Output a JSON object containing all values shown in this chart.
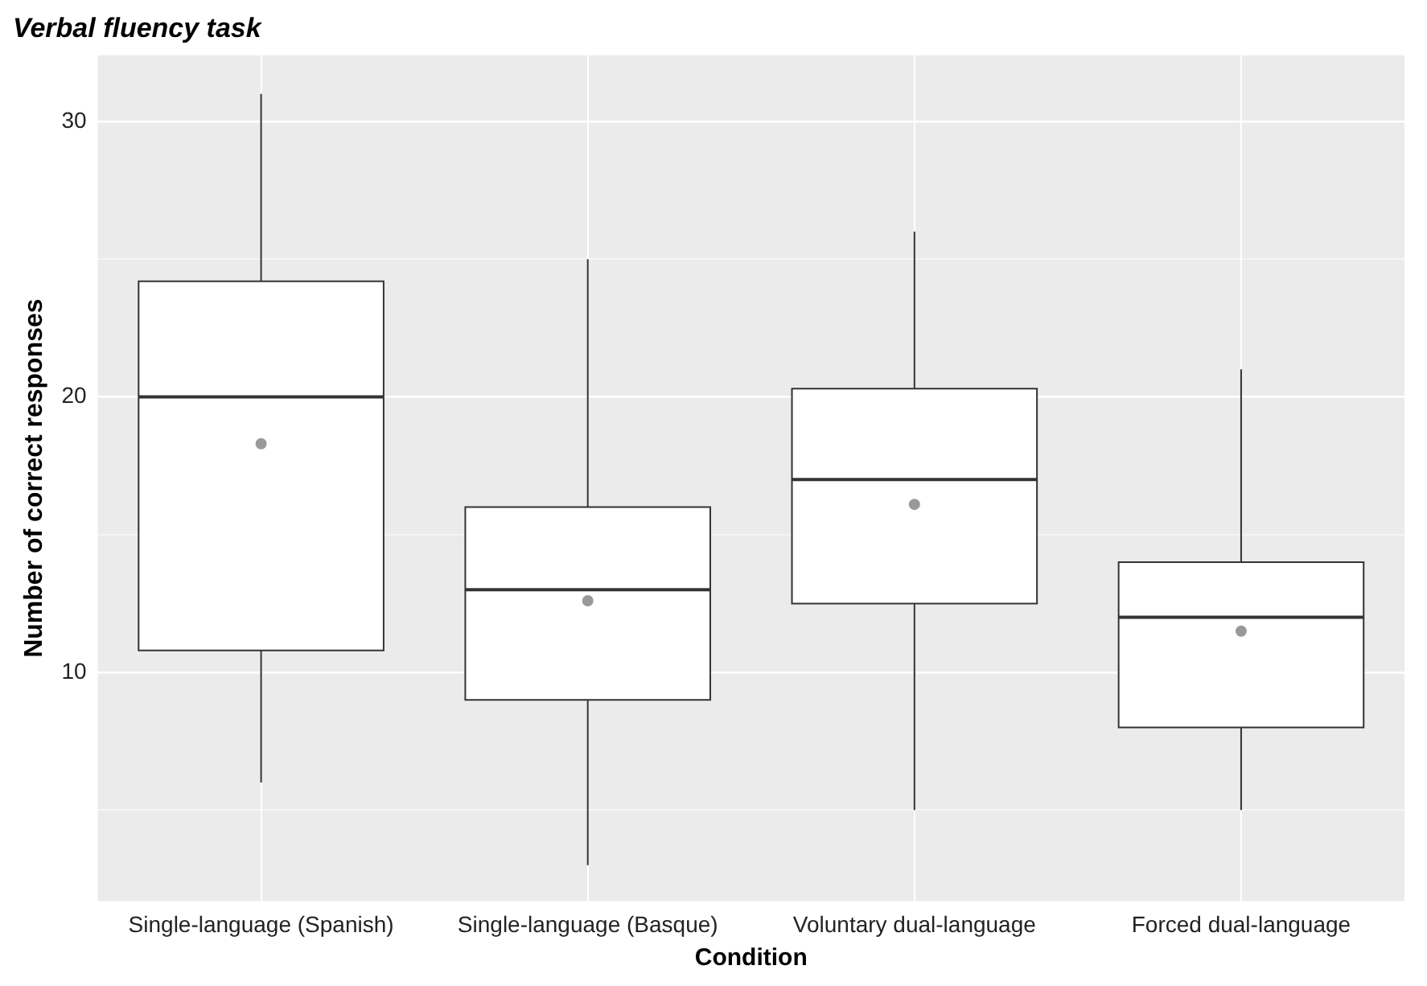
{
  "chart_data": {
    "type": "box",
    "title": "Verbal fluency task",
    "xlabel": "Condition",
    "ylabel": "Number of correct responses",
    "categories": [
      "Single-language (Spanish)",
      "Single-language (Basque)",
      "Voluntary dual-language",
      "Forced dual-language"
    ],
    "boxes": [
      {
        "low": 6,
        "q1": 10.8,
        "median": 20,
        "q3": 24.2,
        "high": 31,
        "mean": 18.3
      },
      {
        "low": 3,
        "q1": 9,
        "median": 13,
        "q3": 16,
        "high": 25,
        "mean": 12.6
      },
      {
        "low": 5,
        "q1": 12.5,
        "median": 17,
        "q3": 20.3,
        "high": 26,
        "mean": 16.1
      },
      {
        "low": 5,
        "q1": 8,
        "median": 12,
        "q3": 14,
        "high": 21,
        "mean": 11.5
      }
    ],
    "color": "#ffffff",
    "ylim": [
      1.7,
      32.4
    ],
    "yticks": [
      {
        "value": 5,
        "label": null
      },
      10,
      {
        "value": 15,
        "label": null
      },
      20,
      {
        "value": 25,
        "label": null
      },
      30
    ],
    "grid": true,
    "legend": false
  }
}
